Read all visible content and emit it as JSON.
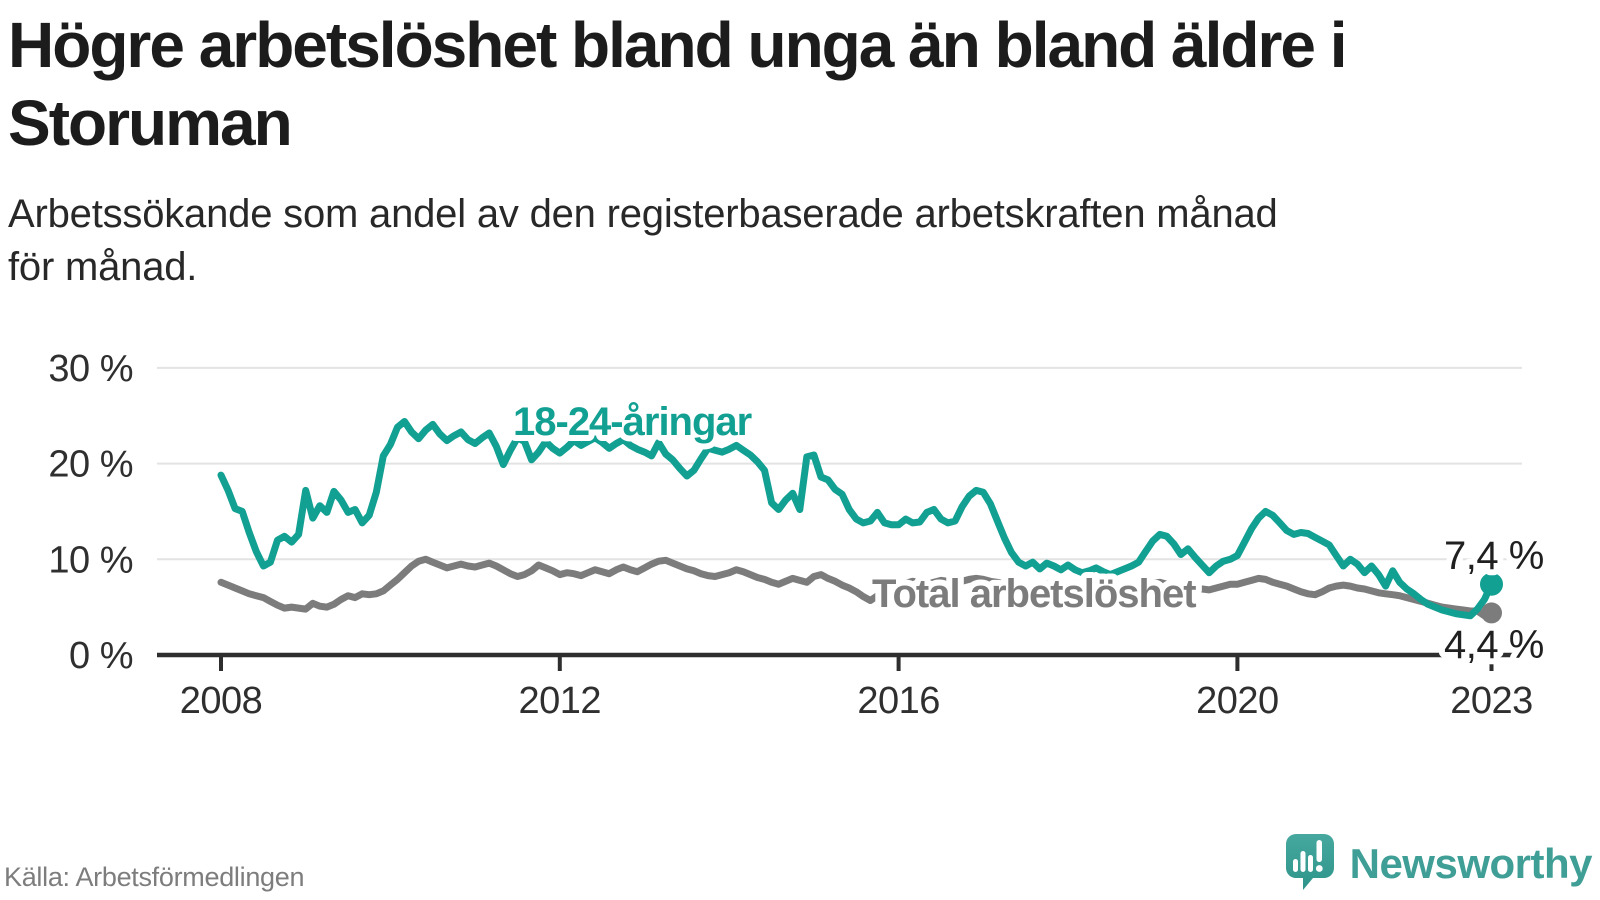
{
  "header": {
    "title_lines": [
      "Högre arbetslöshet bland unga än bland äldre i",
      "Storuman"
    ],
    "subtitle_lines": [
      "Arbetssökande som andel av den registerbaserade arbetskraften månad",
      "för månad."
    ]
  },
  "footer": {
    "source": "Källa: Arbetsförmedlingen",
    "brand": "Newsworthy"
  },
  "colors": {
    "accent_teal": "#12a093",
    "brand_teal": "#3f9e96",
    "line_gray": "#7c7c7c",
    "grid": "#e3e3e3",
    "axis": "#2e2e2e",
    "title_text": "#1c1c1c",
    "tick_text": "#2f2f2f",
    "value_text": "#202020",
    "source_text": "#7d7d7d"
  },
  "chart_data": {
    "type": "line",
    "unit": "%",
    "frequency": "monthly",
    "x_start": "2008-01",
    "x_end": "2023-01",
    "x_tick_years": [
      2008,
      2012,
      2016,
      2020,
      2023
    ],
    "y_ticks": [
      {
        "value": 0,
        "label": "0 %"
      },
      {
        "value": 10,
        "label": "10 %"
      },
      {
        "value": 20,
        "label": "20 %"
      },
      {
        "value": 30,
        "label": "30 %"
      }
    ],
    "ylim": [
      0,
      31
    ],
    "grid": "horizontal",
    "legend_position": "inline-labels",
    "series": [
      {
        "id": "youth",
        "name": "18-24-åringar",
        "color": "#12a093",
        "end_label": "7,4 %",
        "end_value": 7.4,
        "values": [
          18.8,
          17.2,
          15.3,
          15.0,
          12.8,
          10.8,
          9.3,
          9.7,
          12.0,
          12.4,
          11.8,
          12.6,
          17.2,
          14.3,
          15.6,
          14.9,
          17.1,
          16.2,
          14.9,
          15.2,
          13.8,
          14.6,
          17.0,
          20.8,
          22.0,
          23.8,
          24.4,
          23.3,
          22.6,
          23.5,
          24.1,
          23.1,
          22.4,
          22.9,
          23.3,
          22.5,
          22.1,
          22.7,
          23.2,
          21.8,
          19.9,
          21.4,
          22.7,
          22.3,
          20.4,
          21.2,
          22.3,
          21.6,
          21.1,
          21.7,
          22.4,
          21.9,
          22.3,
          22.7,
          22.2,
          21.6,
          22.1,
          22.5,
          21.9,
          21.5,
          21.2,
          20.8,
          22.2,
          21.0,
          20.4,
          19.5,
          18.7,
          19.3,
          20.5,
          21.6,
          21.4,
          21.2,
          21.5,
          21.9,
          21.4,
          20.9,
          20.2,
          19.3,
          15.9,
          15.2,
          16.2,
          16.9,
          15.2,
          20.7,
          20.9,
          18.6,
          18.3,
          17.3,
          16.8,
          15.2,
          14.2,
          13.8,
          14.0,
          14.9,
          13.8,
          13.6,
          13.6,
          14.2,
          13.8,
          13.9,
          14.9,
          15.2,
          14.2,
          13.8,
          14.0,
          15.5,
          16.6,
          17.2,
          17.0,
          15.8,
          14.0,
          12.2,
          10.7,
          9.7,
          9.3,
          9.7,
          9.0,
          9.6,
          9.3,
          8.9,
          9.4,
          8.9,
          8.6,
          8.8,
          9.1,
          8.7,
          8.4,
          8.7,
          9.0,
          9.3,
          9.7,
          10.8,
          11.9,
          12.6,
          12.4,
          11.6,
          10.5,
          11.1,
          10.2,
          9.4,
          8.6,
          9.3,
          9.8,
          10.0,
          10.4,
          11.8,
          13.2,
          14.3,
          15.0,
          14.6,
          13.8,
          13.0,
          12.6,
          12.8,
          12.7,
          12.3,
          11.9,
          11.5,
          10.4,
          9.3,
          10.0,
          9.5,
          8.6,
          9.3,
          8.4,
          7.2,
          8.8,
          7.6,
          6.9,
          6.4,
          5.8,
          5.3,
          5.0,
          4.7,
          4.5,
          4.3,
          4.2,
          4.1,
          4.8,
          5.8,
          7.4
        ]
      },
      {
        "id": "total",
        "name": "Total arbetslöshet",
        "color": "#7c7c7c",
        "end_label": "4,4 %",
        "end_value": 4.4,
        "values": [
          7.6,
          7.3,
          7.0,
          6.7,
          6.4,
          6.2,
          6.0,
          5.6,
          5.2,
          4.9,
          5.0,
          4.9,
          4.8,
          5.4,
          5.1,
          5.0,
          5.3,
          5.8,
          6.2,
          6.0,
          6.4,
          6.3,
          6.4,
          6.7,
          7.3,
          7.9,
          8.6,
          9.3,
          9.8,
          10.0,
          9.7,
          9.4,
          9.1,
          9.3,
          9.5,
          9.3,
          9.2,
          9.4,
          9.6,
          9.3,
          8.9,
          8.5,
          8.2,
          8.4,
          8.8,
          9.4,
          9.1,
          8.8,
          8.4,
          8.6,
          8.5,
          8.3,
          8.6,
          8.9,
          8.7,
          8.5,
          8.9,
          9.2,
          8.9,
          8.7,
          9.1,
          9.5,
          9.8,
          9.9,
          9.6,
          9.3,
          9.0,
          8.8,
          8.5,
          8.3,
          8.2,
          8.4,
          8.6,
          8.9,
          8.7,
          8.4,
          8.1,
          7.9,
          7.6,
          7.4,
          7.7,
          8.0,
          7.8,
          7.6,
          8.2,
          8.4,
          8.0,
          7.7,
          7.3,
          7.0,
          6.6,
          6.1,
          5.7,
          6.2,
          6.7,
          7.0,
          7.2,
          7.5,
          7.7,
          7.6,
          7.4,
          7.6,
          7.8,
          7.7,
          7.5,
          7.7,
          7.9,
          8.0,
          7.9,
          7.7,
          7.6,
          7.4,
          7.3,
          7.2,
          7.0,
          7.1,
          7.3,
          7.4,
          7.3,
          7.2,
          7.4,
          7.5,
          7.3,
          7.1,
          7.0,
          6.9,
          6.8,
          6.9,
          7.0,
          7.2,
          7.3,
          7.4,
          7.5,
          7.6,
          7.4,
          7.3,
          7.2,
          7.1,
          7.0,
          6.9,
          6.8,
          7.0,
          7.2,
          7.4,
          7.4,
          7.6,
          7.8,
          8.0,
          7.9,
          7.6,
          7.4,
          7.2,
          6.9,
          6.6,
          6.4,
          6.3,
          6.6,
          7.0,
          7.2,
          7.3,
          7.2,
          7.0,
          6.9,
          6.7,
          6.5,
          6.4,
          6.3,
          6.2,
          6.0,
          5.8,
          5.6,
          5.4,
          5.2,
          5.0,
          4.9,
          4.8,
          4.7,
          4.6,
          4.6,
          4.1,
          4.4
        ]
      }
    ]
  }
}
